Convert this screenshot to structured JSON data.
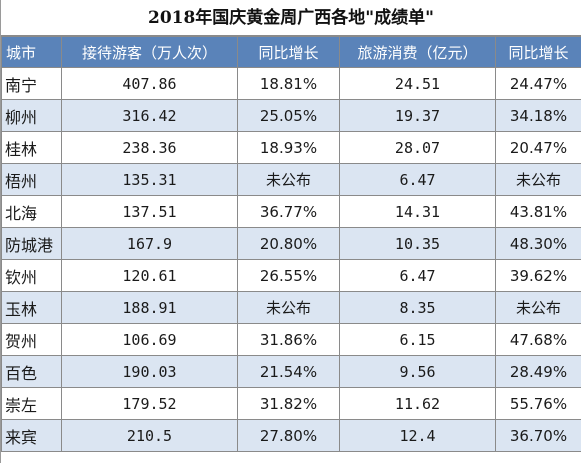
{
  "title": "2018年国庆黄金周广西各地\"成绩单\"",
  "columns": [
    "城市",
    "接待游客（万人次）",
    "同比增长",
    "旅游消费（亿元）",
    "同比增长"
  ],
  "rows": [
    [
      "南宁",
      "407.86",
      "18.81%",
      "24.51",
      "24.47%"
    ],
    [
      "柳州",
      "316.42",
      "25.05%",
      "19.37",
      "34.18%"
    ],
    [
      "桂林",
      "238.36",
      "18.93%",
      "28.07",
      "20.47%"
    ],
    [
      "梧州",
      "135.31",
      "未公布",
      "6.47",
      "未公布"
    ],
    [
      "北海",
      "137.51",
      "36.77%",
      "14.31",
      "43.81%"
    ],
    [
      "防城港",
      "167.9",
      "20.80%",
      "10.35",
      "48.30%"
    ],
    [
      "钦州",
      "120.61",
      "26.55%",
      "6.47",
      "39.62%"
    ],
    [
      "玉林",
      "188.91",
      "未公布",
      "8.35",
      "未公布"
    ],
    [
      "贺州",
      "106.69",
      "31.86%",
      "6.15",
      "47.68%"
    ],
    [
      "百色",
      "190.03",
      "21.54%",
      "9.56",
      "28.49%"
    ],
    [
      "崇左",
      "179.52",
      "31.82%",
      "11.62",
      "55.76%"
    ],
    [
      "来宾",
      "210.5",
      "27.80%",
      "12.4",
      "36.70%"
    ]
  ],
  "colors": {
    "header_bg": "#5a83b9",
    "header_text": "#ffffff",
    "alt_row_bg": "#dbe5f2",
    "row_bg": "#ffffff"
  }
}
